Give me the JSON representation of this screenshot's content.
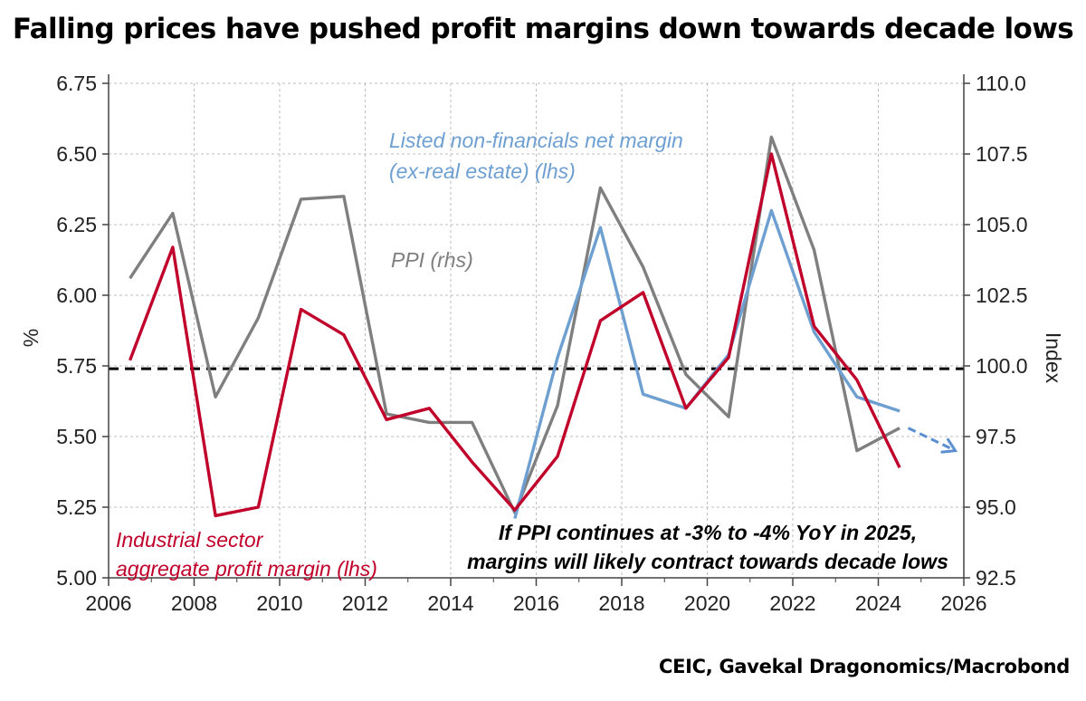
{
  "title": "Falling prices have pushed profit margins down towards decade lows",
  "source": "CEIC, Gavekal Dragonomics/Macrobond",
  "chart_data": {
    "type": "line",
    "xlim": [
      2006,
      2026
    ],
    "x_ticks": [
      "2006",
      "2008",
      "2010",
      "2012",
      "2014",
      "2016",
      "2018",
      "2020",
      "2022",
      "2024",
      "2026"
    ],
    "left_axis": {
      "label": "%",
      "ylim": [
        5.0,
        6.75
      ],
      "ticks": [
        "5.00",
        "5.25",
        "5.50",
        "5.75",
        "6.00",
        "6.25",
        "6.50",
        "6.75"
      ]
    },
    "right_axis": {
      "label": "Index",
      "ylim": [
        92.5,
        110.0
      ],
      "ticks": [
        "92.5",
        "95.0",
        "97.5",
        "100.0",
        "102.5",
        "105.0",
        "107.5",
        "110.0"
      ]
    },
    "grid": true,
    "reference_line": {
      "axis": "left",
      "value": 5.74,
      "style": "dashed",
      "color": "#000000"
    },
    "series": [
      {
        "name": "Industrial sector aggregate profit margin (lhs)",
        "axis": "left",
        "color": "#c0002b",
        "x": [
          2006.5,
          2007.5,
          2008.5,
          2009.5,
          2010.5,
          2011.5,
          2012.5,
          2013.5,
          2014.5,
          2015.5,
          2016.5,
          2017.5,
          2018.5,
          2019.5,
          2020.5,
          2021.5,
          2022.5,
          2023.5,
          2024.5
        ],
        "y": [
          5.77,
          6.17,
          5.22,
          5.25,
          5.95,
          5.86,
          5.56,
          5.6,
          5.41,
          5.24,
          5.43,
          5.91,
          6.01,
          5.6,
          5.78,
          6.5,
          5.89,
          5.7,
          5.39
        ]
      },
      {
        "name": "PPI (rhs)",
        "axis": "right",
        "color": "#7f7f7f",
        "x": [
          2006.5,
          2007.5,
          2008.5,
          2009.5,
          2010.5,
          2011.5,
          2012.5,
          2013.5,
          2014.5,
          2015.5,
          2016.5,
          2017.5,
          2018.5,
          2019.5,
          2020.5,
          2021.5,
          2022.5,
          2023.5,
          2024.5
        ],
        "y": [
          103.1,
          105.4,
          98.9,
          101.7,
          105.9,
          106.0,
          98.3,
          98.0,
          98.0,
          94.8,
          98.6,
          106.3,
          103.5,
          99.7,
          98.2,
          108.1,
          104.1,
          97.0,
          97.8
        ]
      },
      {
        "name": "Listed non-financials net margin (ex-real estate)  (lhs)",
        "axis": "left",
        "color": "#6e9fd1",
        "x": [
          2015.5,
          2016.5,
          2017.5,
          2018.5,
          2019.5,
          2020.5,
          2021.5,
          2022.5,
          2023.5,
          2024.5
        ],
        "y": [
          5.21,
          5.78,
          6.24,
          5.65,
          5.6,
          5.79,
          6.3,
          5.87,
          5.64,
          5.59
        ]
      }
    ],
    "projection_arrow": {
      "from": [
        2024.7,
        5.53
      ],
      "to": [
        2025.8,
        5.45
      ],
      "color": "#5b8fd0"
    },
    "annotations": [
      {
        "lines": [
          "Listed non-financials net margin",
          "(ex-real estate)  (lhs)"
        ],
        "color": "#6e9fd1"
      },
      {
        "lines": [
          "PPI (rhs)"
        ],
        "color": "#7f7f7f"
      },
      {
        "lines": [
          "Industrial sector",
          "aggregate profit margin (lhs)"
        ],
        "color": "#c0002b"
      },
      {
        "lines": [
          "If PPI continues at -3% to -4% YoY in 2025,",
          "margins will likely contract towards decade lows"
        ],
        "color": "#000000"
      }
    ]
  }
}
